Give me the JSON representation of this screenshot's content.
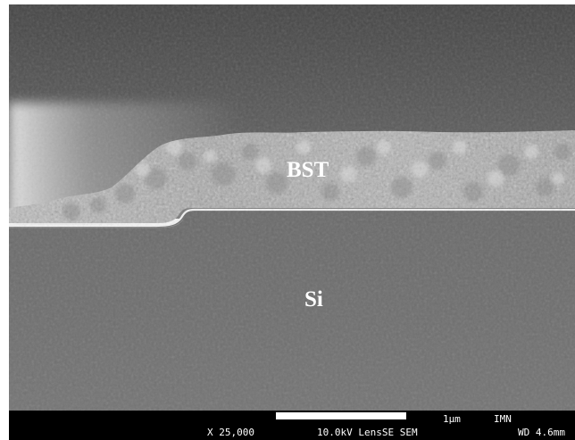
{
  "micrograph": {
    "layer_labels": {
      "film": "BST",
      "substrate": "Si"
    }
  },
  "databar": {
    "scale_label": "1μm",
    "institute": "IMN",
    "magnification": "X 25,000",
    "conditions": "10.0kV LensSE SEM",
    "working_distance": "WD 4.6mm"
  }
}
